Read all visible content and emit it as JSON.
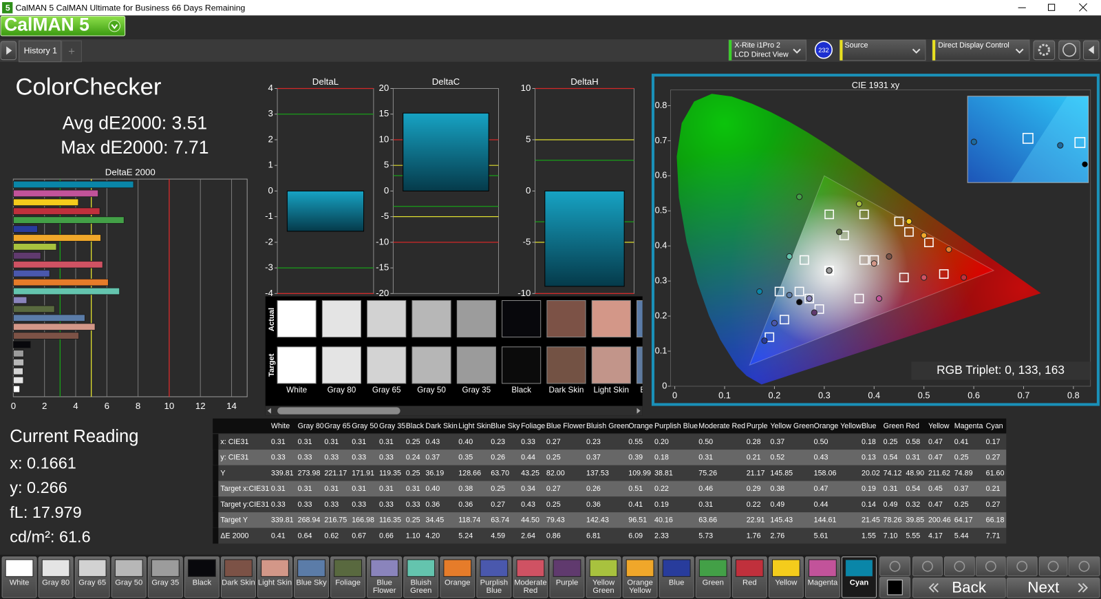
{
  "window": {
    "title": "CalMAN 5 CalMAN Ultimate for Business 66 Days Remaining",
    "icon": "5"
  },
  "logo": "CalMAN 5",
  "tabs": [
    "History 1"
  ],
  "toolbar": {
    "meter": [
      "X-Rite i1Pro 2",
      "LCD Direct View"
    ],
    "badge": "232",
    "source": "Source",
    "display": "Direct Display Control"
  },
  "summary": {
    "title": "ColorChecker",
    "avg": "Avg dE2000: 3.51",
    "max": "Max dE2000: 7.71"
  },
  "reading": {
    "title": "Current Reading",
    "lines": [
      "x: 0.1661",
      "y: 0.266",
      "fL: 17.979",
      "cd/m²: 61.6"
    ]
  },
  "swatch_labels": {
    "actual": "Actual",
    "target": "Target"
  },
  "selected": 23,
  "patches": [
    {
      "name": "White",
      "actual": "#ffffff",
      "target": "#ffffff"
    },
    {
      "name": "Gray 80",
      "actual": "#e4e4e4",
      "target": "#e4e4e4"
    },
    {
      "name": "Gray 65",
      "actual": "#d2d2d2",
      "target": "#d3d3d3"
    },
    {
      "name": "Gray 50",
      "actual": "#b7b7b7",
      "target": "#b6b6b6"
    },
    {
      "name": "Gray 35",
      "actual": "#9c9c9c",
      "target": "#9b9b9b"
    },
    {
      "name": "Black",
      "actual": "#08080c",
      "target": "#0b0b0b"
    },
    {
      "name": "Dark Skin",
      "actual": "#7c5246",
      "target": "#735244"
    },
    {
      "name": "Light Skin",
      "actual": "#d39788",
      "target": "#c2958a"
    },
    {
      "name": "Blue Sky",
      "actual": "#5b7ca8",
      "target": "#5f7ba0"
    },
    {
      "name": "Foliage",
      "actual": "#59693f",
      "target": "#5c6c43"
    },
    {
      "name": "Blue Flower",
      "actual": "#8a84bc",
      "target": "#8582b2"
    },
    {
      "name": "Bluish Green",
      "actual": "#64c4ae",
      "target": "#66bbaa"
    },
    {
      "name": "Orange",
      "actual": "#e67c2a",
      "target": "#d87e30"
    },
    {
      "name": "Purplish Blue",
      "actual": "#4a58ad",
      "target": "#4f5ba8"
    },
    {
      "name": "Moderate Red",
      "actual": "#cf5263",
      "target": "#c15a63"
    },
    {
      "name": "Purple",
      "actual": "#603a6e",
      "target": "#5e3c6c"
    },
    {
      "name": "Yellow Green",
      "actual": "#a8c23e",
      "target": "#9dbc40"
    },
    {
      "name": "Orange Yellow",
      "actual": "#f0a72a",
      "target": "#e0a32e"
    },
    {
      "name": "Blue",
      "actual": "#283c9c",
      "target": "#383d96"
    },
    {
      "name": "Green",
      "actual": "#43a047",
      "target": "#469449"
    },
    {
      "name": "Red",
      "actual": "#c0303c",
      "target": "#af363c"
    },
    {
      "name": "Yellow",
      "actual": "#f4cc1c",
      "target": "#e7c71f"
    },
    {
      "name": "Magenta",
      "actual": "#c2539a",
      "target": "#bb5695"
    },
    {
      "name": "Cyan",
      "actual": "#0a86a8",
      "target": "#0885a1"
    }
  ],
  "table": {
    "rows": [
      {
        "label": "x: CIE31",
        "cells": [
          "0.31",
          "0.31",
          "0.31",
          "0.31",
          "0.31",
          "0.25",
          "0.43",
          "0.40",
          "0.23",
          "0.33",
          "0.27",
          "0.23",
          "0.55",
          "0.20",
          "0.50",
          "0.28",
          "0.37",
          "0.50",
          "0.18",
          "0.25",
          "0.58",
          "0.47",
          "0.41",
          "0.17"
        ]
      },
      {
        "label": "y: CIE31",
        "cells": [
          "0.33",
          "0.33",
          "0.33",
          "0.33",
          "0.33",
          "0.24",
          "0.37",
          "0.35",
          "0.26",
          "0.44",
          "0.25",
          "0.37",
          "0.39",
          "0.18",
          "0.31",
          "0.21",
          "0.52",
          "0.43",
          "0.13",
          "0.54",
          "0.31",
          "0.47",
          "0.25",
          "0.27"
        ]
      },
      {
        "label": "Y",
        "cells": [
          "339.81",
          "273.98",
          "221.17",
          "171.91",
          "119.35",
          "0.25",
          "36.19",
          "128.66",
          "63.70",
          "43.25",
          "82.00",
          "137.53",
          "109.99",
          "38.81",
          "75.26",
          "21.17",
          "145.85",
          "158.06",
          "20.02",
          "74.12",
          "48.90",
          "211.62",
          "74.89",
          "61.60"
        ]
      },
      {
        "label": "Target x:CIE31",
        "cells": [
          "0.31",
          "0.31",
          "0.31",
          "0.31",
          "0.31",
          "0.31",
          "0.40",
          "0.38",
          "0.25",
          "0.34",
          "0.27",
          "0.26",
          "0.51",
          "0.22",
          "0.46",
          "0.29",
          "0.38",
          "0.47",
          "0.19",
          "0.31",
          "0.54",
          "0.45",
          "0.37",
          "0.21"
        ]
      },
      {
        "label": "Target y:CIE31",
        "cells": [
          "0.33",
          "0.33",
          "0.33",
          "0.33",
          "0.33",
          "0.33",
          "0.36",
          "0.36",
          "0.27",
          "0.43",
          "0.25",
          "0.36",
          "0.41",
          "0.19",
          "0.31",
          "0.22",
          "0.49",
          "0.44",
          "0.14",
          "0.49",
          "0.32",
          "0.47",
          "0.25",
          "0.27"
        ]
      },
      {
        "label": "Target Y",
        "cells": [
          "339.81",
          "268.94",
          "216.75",
          "166.98",
          "116.35",
          "0.25",
          "34.45",
          "118.74",
          "63.74",
          "44.50",
          "79.43",
          "142.43",
          "96.51",
          "40.16",
          "63.66",
          "22.91",
          "145.43",
          "144.61",
          "21.45",
          "78.26",
          "39.85",
          "200.46",
          "64.17",
          "66.18"
        ]
      },
      {
        "label": "ΔE 2000",
        "cells": [
          "0.41",
          "0.64",
          "0.62",
          "0.67",
          "0.66",
          "1.10",
          "4.20",
          "5.24",
          "4.59",
          "2.64",
          "0.86",
          "6.81",
          "6.09",
          "2.33",
          "5.73",
          "1.76",
          "2.76",
          "5.61",
          "1.55",
          "7.10",
          "5.55",
          "4.17",
          "5.44",
          "7.71"
        ]
      }
    ]
  },
  "chart_data": [
    {
      "type": "bar",
      "orientation": "horizontal",
      "title": "DeltaE 2000",
      "values": [
        0.41,
        0.64,
        0.62,
        0.67,
        0.66,
        1.1,
        4.2,
        5.24,
        4.59,
        2.64,
        0.86,
        6.81,
        6.09,
        2.33,
        5.73,
        1.76,
        2.76,
        5.61,
        1.55,
        7.1,
        5.55,
        4.17,
        5.44,
        7.71
      ],
      "xlim": [
        0,
        15
      ],
      "xticks": [
        0,
        2,
        4,
        6,
        8,
        10,
        12,
        14
      ],
      "grid": true,
      "thresholds": [
        {
          "value": 3,
          "color": "#19a019"
        },
        {
          "value": 5,
          "color": "#e0e030"
        },
        {
          "value": 10,
          "color": "#d42828"
        }
      ]
    },
    {
      "type": "bar",
      "orientation": "vertical",
      "title": "DeltaL",
      "values": [
        -1.57
      ],
      "color": "#17a3c4",
      "ylim": [
        -4,
        4
      ],
      "yticks": [
        -4,
        -3,
        -2,
        -1,
        0,
        1,
        2,
        3,
        4
      ],
      "thresholds": [
        {
          "value": 3,
          "color": "#19a019"
        },
        {
          "value": -3,
          "color": "#19a019"
        },
        {
          "value": 4,
          "color": "#d42828"
        },
        {
          "value": -4,
          "color": "#d42828"
        }
      ]
    },
    {
      "type": "bar",
      "orientation": "vertical",
      "title": "DeltaC",
      "values": [
        15.2
      ],
      "color": "#17a3c4",
      "ylim": [
        -20,
        20
      ],
      "yticks": [
        -20,
        -15,
        -10,
        -5,
        0,
        5,
        10,
        15,
        20
      ],
      "thresholds": [
        {
          "value": 3,
          "color": "#19a019"
        },
        {
          "value": -3,
          "color": "#19a019"
        },
        {
          "value": 5,
          "color": "#e0e030"
        },
        {
          "value": -5,
          "color": "#e0e030"
        },
        {
          "value": 10,
          "color": "#d42828"
        },
        {
          "value": -10,
          "color": "#d42828"
        }
      ]
    },
    {
      "type": "bar",
      "orientation": "vertical",
      "title": "DeltaH",
      "values": [
        -9.3
      ],
      "color": "#17a3c4",
      "ylim": [
        -10,
        10
      ],
      "yticks": [
        -10,
        -5,
        0,
        5,
        10
      ],
      "thresholds": [
        {
          "value": 3,
          "color": "#19a019"
        },
        {
          "value": -3,
          "color": "#19a019"
        },
        {
          "value": 5,
          "color": "#e0e030"
        },
        {
          "value": -5,
          "color": "#e0e030"
        },
        {
          "value": 10,
          "color": "#d42828"
        },
        {
          "value": -10,
          "color": "#d42828"
        }
      ]
    },
    {
      "type": "scatter",
      "title": "CIE 1931 xy",
      "annotation": "RGB Triplet: 0, 133, 163",
      "xlim": [
        0,
        0.83
      ],
      "ylim": [
        0,
        0.845
      ],
      "xticks": [
        0,
        0.1,
        0.2,
        0.3,
        0.4,
        0.5,
        0.6,
        0.7,
        0.8
      ],
      "yticks": [
        0,
        0.1,
        0.2,
        0.3,
        0.4,
        0.5,
        0.6,
        0.7,
        0.8
      ],
      "series": [
        {
          "marker": "square",
          "color": "#ffffff",
          "x": [
            0.31,
            0.31,
            0.31,
            0.31,
            0.31,
            0.31,
            0.4,
            0.38,
            0.25,
            0.34,
            0.27,
            0.26,
            0.51,
            0.22,
            0.46,
            0.29,
            0.38,
            0.47,
            0.19,
            0.31,
            0.54,
            0.45,
            0.37,
            0.21
          ],
          "y": [
            0.33,
            0.33,
            0.33,
            0.33,
            0.33,
            0.33,
            0.36,
            0.36,
            0.27,
            0.43,
            0.25,
            0.36,
            0.41,
            0.19,
            0.31,
            0.22,
            0.49,
            0.44,
            0.14,
            0.49,
            0.32,
            0.47,
            0.25,
            0.27
          ]
        },
        {
          "marker": "circle",
          "x": [
            0.31,
            0.31,
            0.31,
            0.31,
            0.31,
            0.25,
            0.43,
            0.4,
            0.23,
            0.33,
            0.27,
            0.23,
            0.55,
            0.2,
            0.5,
            0.28,
            0.37,
            0.5,
            0.18,
            0.25,
            0.58,
            0.47,
            0.41,
            0.17
          ],
          "y": [
            0.33,
            0.33,
            0.33,
            0.33,
            0.33,
            0.24,
            0.37,
            0.35,
            0.26,
            0.44,
            0.25,
            0.37,
            0.39,
            0.18,
            0.31,
            0.21,
            0.52,
            0.43,
            0.13,
            0.54,
            0.31,
            0.47,
            0.25,
            0.27
          ]
        }
      ]
    }
  ],
  "nav": {
    "back": "Back",
    "next": "Next"
  }
}
